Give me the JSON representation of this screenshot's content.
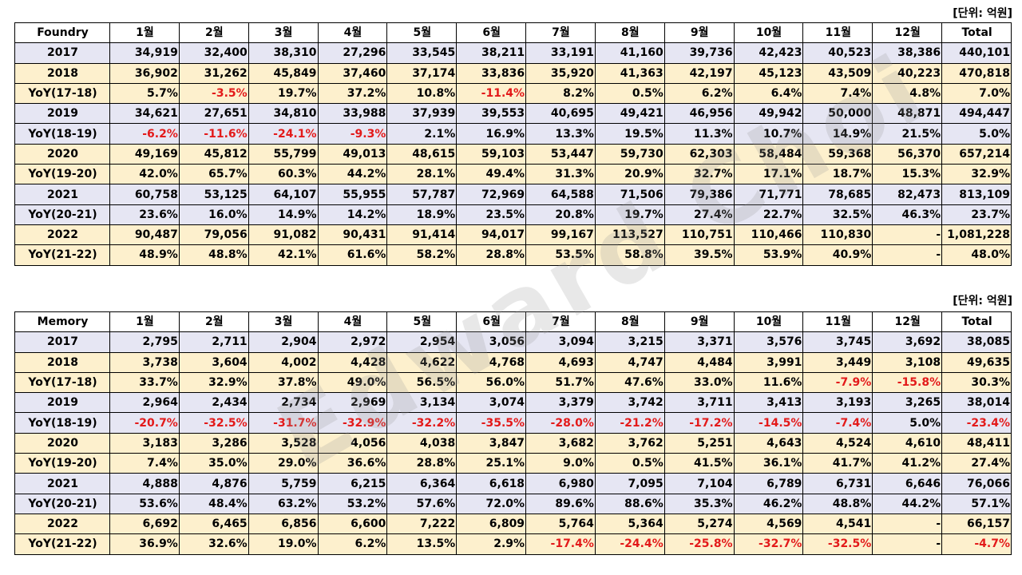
{
  "watermark": "Edward Choi",
  "chart_data": [
    {
      "type": "table",
      "title": "Foundry",
      "unit_label": "[단위: 억원]",
      "columns": [
        "Foundry",
        "1월",
        "2월",
        "3월",
        "4월",
        "5월",
        "6월",
        "7월",
        "8월",
        "9월",
        "10월",
        "11월",
        "12월",
        "Total"
      ],
      "rows": [
        {
          "label": "2017",
          "style": "yr",
          "values": [
            "34,919",
            "32,400",
            "38,310",
            "27,296",
            "33,545",
            "38,211",
            "33,191",
            "41,160",
            "39,736",
            "42,423",
            "40,523",
            "38,386",
            "440,101"
          ]
        },
        {
          "label": "2018",
          "style": "alt",
          "values": [
            "36,902",
            "31,262",
            "45,849",
            "37,460",
            "37,174",
            "33,836",
            "35,920",
            "41,363",
            "42,197",
            "45,123",
            "43,509",
            "40,223",
            "470,818"
          ]
        },
        {
          "label": "YoY(17-18)",
          "style": "alt",
          "values": [
            "5.7%",
            "-3.5%",
            "19.7%",
            "37.2%",
            "10.8%",
            "-11.4%",
            "8.2%",
            "0.5%",
            "6.2%",
            "6.4%",
            "7.4%",
            "4.8%",
            "7.0%"
          ]
        },
        {
          "label": "2019",
          "style": "yr",
          "values": [
            "34,621",
            "27,651",
            "34,810",
            "33,988",
            "37,939",
            "39,553",
            "40,695",
            "49,421",
            "46,956",
            "49,942",
            "50,000",
            "48,871",
            "494,447"
          ]
        },
        {
          "label": "YoY(18-19)",
          "style": "yr",
          "values": [
            "-6.2%",
            "-11.6%",
            "-24.1%",
            "-9.3%",
            "2.1%",
            "16.9%",
            "13.3%",
            "19.5%",
            "11.3%",
            "10.7%",
            "14.9%",
            "21.5%",
            "5.0%"
          ]
        },
        {
          "label": "2020",
          "style": "alt",
          "values": [
            "49,169",
            "45,812",
            "55,799",
            "49,013",
            "48,615",
            "59,103",
            "53,447",
            "59,730",
            "62,303",
            "58,484",
            "59,368",
            "56,370",
            "657,214"
          ]
        },
        {
          "label": "YoY(19-20)",
          "style": "alt",
          "values": [
            "42.0%",
            "65.7%",
            "60.3%",
            "44.2%",
            "28.1%",
            "49.4%",
            "31.3%",
            "20.9%",
            "32.7%",
            "17.1%",
            "18.7%",
            "15.3%",
            "32.9%"
          ]
        },
        {
          "label": "2021",
          "style": "yr",
          "values": [
            "60,758",
            "53,125",
            "64,107",
            "55,955",
            "57,787",
            "72,969",
            "64,588",
            "71,506",
            "79,386",
            "71,771",
            "78,685",
            "82,473",
            "813,109"
          ]
        },
        {
          "label": "YoY(20-21)",
          "style": "yr",
          "values": [
            "23.6%",
            "16.0%",
            "14.9%",
            "14.2%",
            "18.9%",
            "23.5%",
            "20.8%",
            "19.7%",
            "27.4%",
            "22.7%",
            "32.5%",
            "46.3%",
            "23.7%"
          ]
        },
        {
          "label": "2022",
          "style": "alt",
          "values": [
            "90,487",
            "79,056",
            "91,082",
            "90,431",
            "91,414",
            "94,017",
            "99,167",
            "113,527",
            "110,751",
            "110,466",
            "110,830",
            "-",
            "1,081,228"
          ]
        },
        {
          "label": "YoY(21-22)",
          "style": "alt",
          "values": [
            "48.9%",
            "48.8%",
            "42.1%",
            "61.6%",
            "58.2%",
            "28.8%",
            "53.5%",
            "58.8%",
            "39.5%",
            "53.9%",
            "40.9%",
            "-",
            "48.0%"
          ]
        }
      ]
    },
    {
      "type": "table",
      "title": "Memory",
      "unit_label": "[단위: 억원]",
      "columns": [
        "Memory",
        "1월",
        "2월",
        "3월",
        "4월",
        "5월",
        "6월",
        "7월",
        "8월",
        "9월",
        "10월",
        "11월",
        "12월",
        "Total"
      ],
      "rows": [
        {
          "label": "2017",
          "style": "yr",
          "values": [
            "2,795",
            "2,711",
            "2,904",
            "2,972",
            "2,954",
            "3,056",
            "3,094",
            "3,215",
            "3,371",
            "3,576",
            "3,745",
            "3,692",
            "38,085"
          ]
        },
        {
          "label": "2018",
          "style": "alt",
          "values": [
            "3,738",
            "3,604",
            "4,002",
            "4,428",
            "4,622",
            "4,768",
            "4,693",
            "4,747",
            "4,484",
            "3,991",
            "3,449",
            "3,108",
            "49,635"
          ]
        },
        {
          "label": "YoY(17-18)",
          "style": "alt",
          "values": [
            "33.7%",
            "32.9%",
            "37.8%",
            "49.0%",
            "56.5%",
            "56.0%",
            "51.7%",
            "47.6%",
            "33.0%",
            "11.6%",
            "-7.9%",
            "-15.8%",
            "30.3%"
          ]
        },
        {
          "label": "2019",
          "style": "yr",
          "values": [
            "2,964",
            "2,434",
            "2,734",
            "2,969",
            "3,134",
            "3,074",
            "3,379",
            "3,742",
            "3,711",
            "3,413",
            "3,193",
            "3,265",
            "38,014"
          ]
        },
        {
          "label": "YoY(18-19)",
          "style": "yr",
          "values": [
            "-20.7%",
            "-32.5%",
            "-31.7%",
            "-32.9%",
            "-32.2%",
            "-35.5%",
            "-28.0%",
            "-21.2%",
            "-17.2%",
            "-14.5%",
            "-7.4%",
            "5.0%",
            "-23.4%"
          ]
        },
        {
          "label": "2020",
          "style": "alt",
          "values": [
            "3,183",
            "3,286",
            "3,528",
            "4,056",
            "4,038",
            "3,847",
            "3,682",
            "3,762",
            "5,251",
            "4,643",
            "4,524",
            "4,610",
            "48,411"
          ]
        },
        {
          "label": "YoY(19-20)",
          "style": "alt",
          "values": [
            "7.4%",
            "35.0%",
            "29.0%",
            "36.6%",
            "28.8%",
            "25.1%",
            "9.0%",
            "0.5%",
            "41.5%",
            "36.1%",
            "41.7%",
            "41.2%",
            "27.4%"
          ]
        },
        {
          "label": "2021",
          "style": "yr",
          "values": [
            "4,888",
            "4,876",
            "5,759",
            "6,215",
            "6,364",
            "6,618",
            "6,980",
            "7,095",
            "7,104",
            "6,789",
            "6,731",
            "6,646",
            "76,066"
          ]
        },
        {
          "label": "YoY(20-21)",
          "style": "yr",
          "values": [
            "53.6%",
            "48.4%",
            "63.2%",
            "53.2%",
            "57.6%",
            "72.0%",
            "89.6%",
            "88.6%",
            "35.3%",
            "46.2%",
            "48.8%",
            "44.2%",
            "57.1%"
          ]
        },
        {
          "label": "2022",
          "style": "alt",
          "values": [
            "6,692",
            "6,465",
            "6,856",
            "6,600",
            "7,222",
            "6,809",
            "5,764",
            "5,364",
            "5,274",
            "4,569",
            "4,541",
            "-",
            "66,157"
          ]
        },
        {
          "label": "YoY(21-22)",
          "style": "alt",
          "values": [
            "36.9%",
            "32.6%",
            "19.0%",
            "6.2%",
            "13.5%",
            "2.9%",
            "-17.4%",
            "-24.4%",
            "-25.8%",
            "-32.7%",
            "-32.5%",
            "-",
            "-4.7%"
          ]
        }
      ]
    }
  ],
  "colors": {
    "year_row_bg": "#e6e6f3",
    "alt_row_bg": "#fdf0cd",
    "negative": "#e31a1a"
  }
}
